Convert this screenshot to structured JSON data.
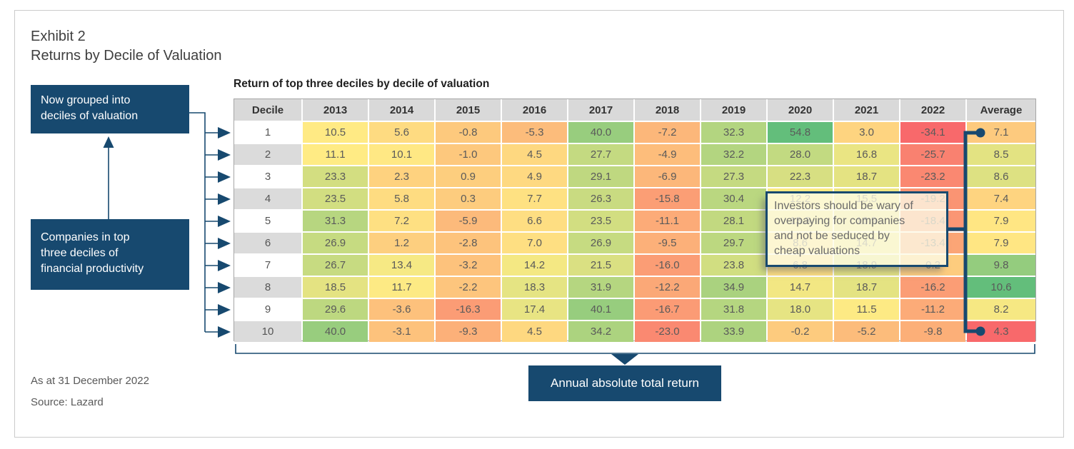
{
  "header": {
    "exhibit_label": "Exhibit 2",
    "title": "Returns by Decile of Valuation"
  },
  "chart_data": {
    "type": "heatmap",
    "title": "Return of top three deciles by decile of valuation",
    "row_axis_label": "Decile",
    "columns": [
      "2013",
      "2014",
      "2015",
      "2016",
      "2017",
      "2018",
      "2019",
      "2020",
      "2021",
      "2022",
      "Average"
    ],
    "rows": [
      {
        "decile": "1",
        "values": [
          10.5,
          5.6,
          -0.8,
          -5.3,
          40.0,
          -7.2,
          32.3,
          54.8,
          3.0,
          -34.1
        ],
        "average": 7.1
      },
      {
        "decile": "2",
        "values": [
          11.1,
          10.1,
          -1.0,
          4.5,
          27.7,
          -4.9,
          32.2,
          28.0,
          16.8,
          -25.7
        ],
        "average": 8.5
      },
      {
        "decile": "3",
        "values": [
          23.3,
          2.3,
          0.9,
          4.9,
          29.1,
          -6.9,
          27.3,
          22.3,
          18.7,
          -23.2
        ],
        "average": 8.6
      },
      {
        "decile": "4",
        "values": [
          23.5,
          5.8,
          0.3,
          7.7,
          26.3,
          -15.8,
          30.4,
          12.2,
          15.5,
          -19.2
        ],
        "average": 7.4
      },
      {
        "decile": "5",
        "values": [
          31.3,
          7.2,
          -5.9,
          6.6,
          23.5,
          -11.1,
          28.1,
          13.3,
          16.9,
          -18.4
        ],
        "average": 7.9
      },
      {
        "decile": "6",
        "values": [
          26.9,
          1.2,
          -2.8,
          7.0,
          26.9,
          -9.5,
          29.7,
          8.6,
          14.7,
          -13.4
        ],
        "average": 7.9
      },
      {
        "decile": "7",
        "values": [
          26.7,
          13.4,
          -3.2,
          14.2,
          21.5,
          -16.0,
          23.8,
          6.8,
          18.9,
          0.2
        ],
        "average": 9.8
      },
      {
        "decile": "8",
        "values": [
          18.5,
          11.7,
          -2.2,
          18.3,
          31.9,
          -12.2,
          34.9,
          14.7,
          18.7,
          -16.2
        ],
        "average": 10.6
      },
      {
        "decile": "9",
        "values": [
          29.6,
          -3.6,
          -16.3,
          17.4,
          40.1,
          -16.7,
          31.8,
          18.0,
          11.5,
          -11.2
        ],
        "average": 8.2
      },
      {
        "decile": "10",
        "values": [
          40.0,
          -3.1,
          -9.3,
          4.5,
          34.2,
          -23.0,
          33.9,
          -0.2,
          -5.2,
          -9.8
        ],
        "average": 4.3
      }
    ],
    "color_scale": {
      "stops": {
        "low": "#F8696B",
        "mid": "#FFEB84",
        "high": "#63BE7B"
      },
      "years": {
        "min": -34.1,
        "mid": 11.0,
        "max": 54.8
      },
      "average": {
        "min": 4.3,
        "mid": 8.05,
        "max": 10.6
      }
    },
    "legend_position": "none",
    "grid": true
  },
  "annotations": {
    "box_grouped_lines": [
      "Now grouped into",
      "deciles of valuation"
    ],
    "box_companies_lines": [
      "Companies in top",
      "three deciles of",
      "financial productivity"
    ],
    "tooltip_lines": [
      "Investors should be wary of",
      "overpaying for companies",
      "and not be seduced by",
      "cheap valuations"
    ],
    "bottom_label": "Annual absolute total return"
  },
  "footer": {
    "as_at": "As at 31 December 2022",
    "source": "Source: Lazard"
  },
  "colors": {
    "navy": "#17496F",
    "header_bg": "#D9D9D9",
    "alt_row_bg": "#DBDBDB",
    "table_border": "#A6A6A6"
  }
}
